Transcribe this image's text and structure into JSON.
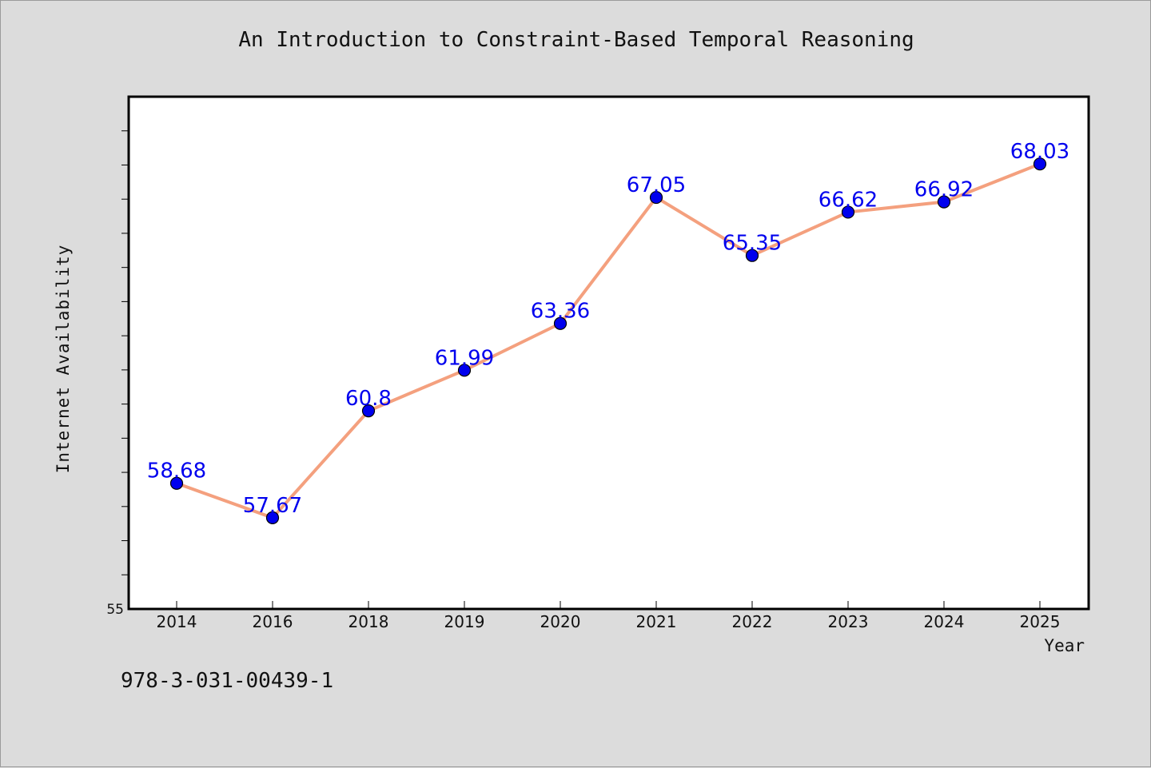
{
  "chart_data": {
    "type": "line",
    "title": "An Introduction to Constraint-Based Temporal Reasoning",
    "xlabel": "Year",
    "ylabel": "Internet Availability",
    "categories": [
      "2014",
      "2016",
      "2018",
      "2019",
      "2020",
      "2021",
      "2022",
      "2023",
      "2024",
      "2025"
    ],
    "series": [
      {
        "values": [
          58.68,
          57.67,
          60.8,
          61.99,
          63.36,
          67.05,
          65.35,
          66.62,
          66.92,
          68.03
        ]
      }
    ],
    "data_labels": [
      "58.68",
      "57.67",
      "60.8",
      "61.99",
      "63.36",
      "67.05",
      "65.35",
      "66.62",
      "66.92",
      "68.03"
    ],
    "y_tick_label": "55",
    "ylim": [
      55,
      70
    ],
    "grid": false,
    "colors": {
      "line": "#f4a07e",
      "marker": "#0000ee",
      "label": "#0000ee",
      "background": "#dcdcdc",
      "plot_background": "#ffffff"
    }
  },
  "footer": {
    "code": "978-3-031-00439-1"
  }
}
